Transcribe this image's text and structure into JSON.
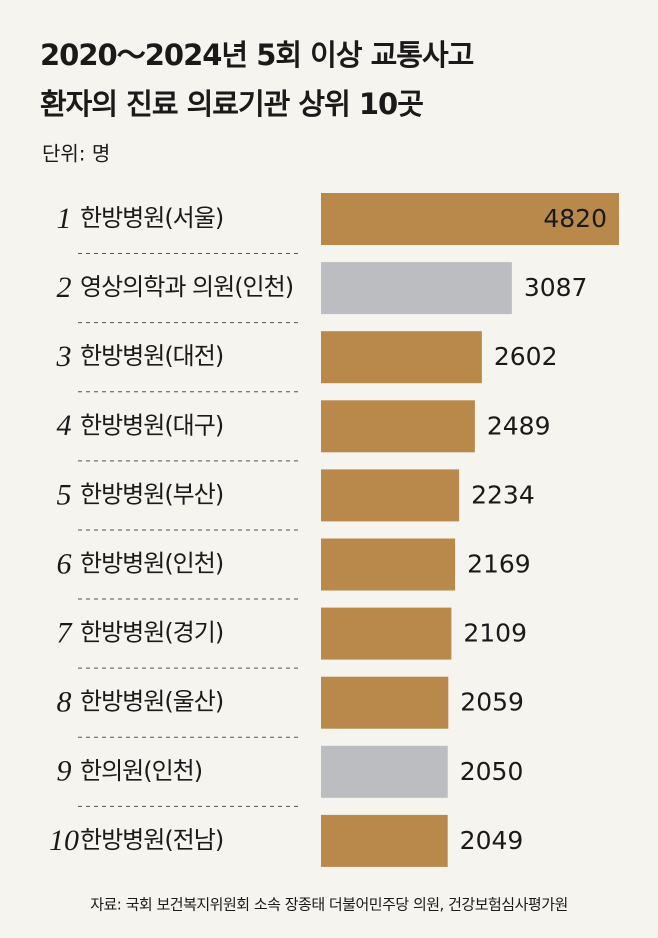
{
  "chart_data": {
    "type": "bar",
    "title": [
      "2020～2024년 5회 이상 교통사고",
      "환자의 진료 의료기관 상위 10곳"
    ],
    "subtitle": "단위: 명",
    "ranks": [
      "1",
      "2",
      "3",
      "4",
      "5",
      "6",
      "7",
      "8",
      "9",
      "10"
    ],
    "categories": [
      "한방병원(서울)",
      "영상의학과 의원(인천)",
      "한방병원(대전)",
      "한방병원(대구)",
      "한방병원(부산)",
      "한방병원(인천)",
      "한방병원(경기)",
      "한방병원(울산)",
      "한의원(인천)",
      "한방병원(전남)"
    ],
    "values": [
      4820,
      3087,
      2602,
      2489,
      2234,
      2169,
      2109,
      2059,
      2050,
      2049
    ],
    "colors": [
      "#b8894a",
      "#bcbdc0",
      "#b8894a",
      "#b8894a",
      "#b8894a",
      "#b8894a",
      "#b8894a",
      "#b8894a",
      "#bcbdc0",
      "#b8894a"
    ],
    "source": "자료: 국회 보건복지위원회 소속 장종태 더불어민주당 의원, 건강보험심사평가원"
  }
}
